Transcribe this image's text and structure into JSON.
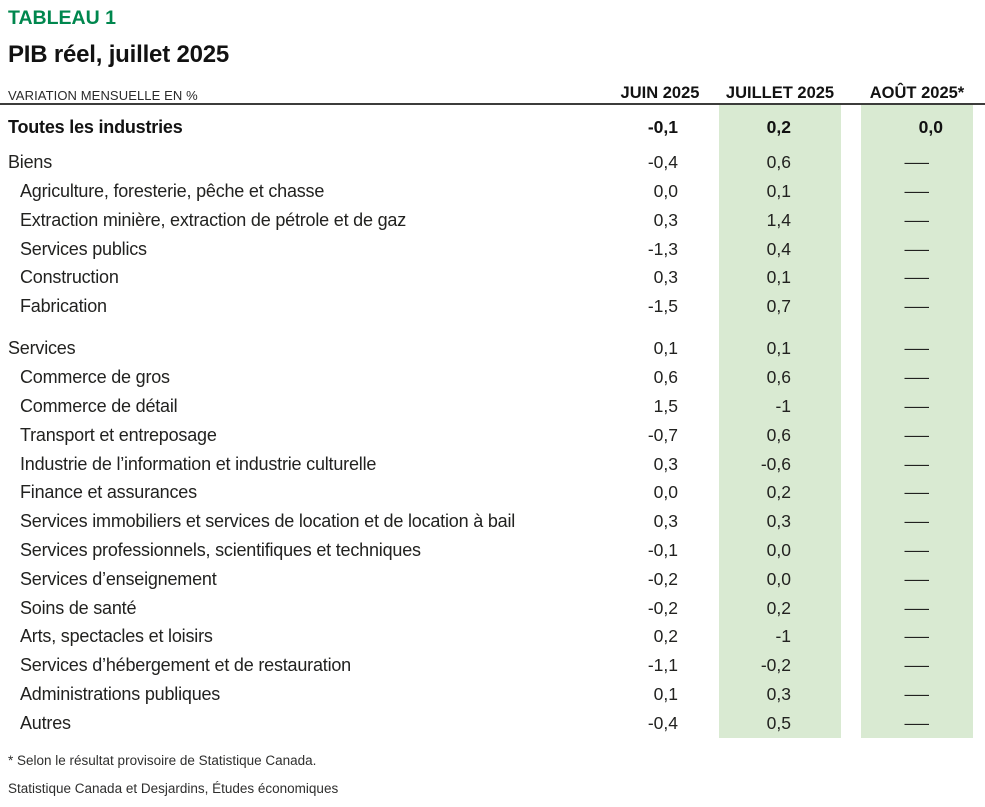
{
  "header": {
    "kicker": "TABLEAU 1",
    "title": "PIB réel, juillet 2025",
    "measure_label": "VARIATION MENSUELLE EN %"
  },
  "chart_data": {
    "type": "table",
    "title": "PIB réel, juillet 2025",
    "unit": "variation mensuelle en %",
    "columns": [
      "JUIN 2025",
      "JUILLET 2025",
      "AOÛT 2025*"
    ],
    "highlighted_columns": [
      "JUILLET 2025",
      "AOÛT 2025*"
    ],
    "no_data_symbol": "—",
    "rows": [
      {
        "label": "Toutes les industries",
        "level": 0,
        "bold": true,
        "gap_before": "none",
        "values": [
          "-0,1",
          "0,2",
          "0,0"
        ]
      },
      {
        "label": "Biens",
        "level": 0,
        "bold": false,
        "gap_before": "small",
        "values": [
          "-0,4",
          "0,6",
          "—"
        ]
      },
      {
        "label": "Agriculture, foresterie, pêche et chasse",
        "level": 1,
        "bold": false,
        "gap_before": "none",
        "values": [
          "0,0",
          "0,1",
          "—"
        ]
      },
      {
        "label": "Extraction minière, extraction de pétrole et de gaz",
        "level": 1,
        "bold": false,
        "gap_before": "none",
        "values": [
          "0,3",
          "1,4",
          "—"
        ]
      },
      {
        "label": "Services publics",
        "level": 1,
        "bold": false,
        "gap_before": "none",
        "values": [
          "-1,3",
          "0,4",
          "—"
        ]
      },
      {
        "label": "Construction",
        "level": 1,
        "bold": false,
        "gap_before": "none",
        "values": [
          "0,3",
          "0,1",
          "—"
        ]
      },
      {
        "label": "Fabrication",
        "level": 1,
        "bold": false,
        "gap_before": "none",
        "values": [
          "-1,5",
          "0,7",
          "—"
        ]
      },
      {
        "label": "Services",
        "level": 0,
        "bold": false,
        "gap_before": "large",
        "values": [
          "0,1",
          "0,1",
          "—"
        ]
      },
      {
        "label": "Commerce de gros",
        "level": 1,
        "bold": false,
        "gap_before": "none",
        "values": [
          "0,6",
          "0,6",
          "—"
        ]
      },
      {
        "label": "Commerce de détail",
        "level": 1,
        "bold": false,
        "gap_before": "none",
        "values": [
          "1,5",
          "-1",
          "—"
        ]
      },
      {
        "label": "Transport et entreposage",
        "level": 1,
        "bold": false,
        "gap_before": "none",
        "values": [
          "-0,7",
          "0,6",
          "—"
        ]
      },
      {
        "label": "Industrie de l’information et industrie culturelle",
        "level": 1,
        "bold": false,
        "gap_before": "none",
        "values": [
          "0,3",
          "-0,6",
          "—"
        ]
      },
      {
        "label": "Finance et assurances",
        "level": 1,
        "bold": false,
        "gap_before": "none",
        "values": [
          "0,0",
          "0,2",
          "—"
        ]
      },
      {
        "label": "Services immobiliers et services de location et de location à bail",
        "level": 1,
        "bold": false,
        "gap_before": "none",
        "values": [
          "0,3",
          "0,3",
          "—"
        ]
      },
      {
        "label": "Services professionnels, scientifiques et techniques",
        "level": 1,
        "bold": false,
        "gap_before": "none",
        "values": [
          "-0,1",
          "0,0",
          "—"
        ]
      },
      {
        "label": "Services d’enseignement",
        "level": 1,
        "bold": false,
        "gap_before": "none",
        "values": [
          "-0,2",
          "0,0",
          "—"
        ]
      },
      {
        "label": "Soins de santé",
        "level": 1,
        "bold": false,
        "gap_before": "none",
        "values": [
          "-0,2",
          "0,2",
          "—"
        ]
      },
      {
        "label": "Arts, spectacles et loisirs",
        "level": 1,
        "bold": false,
        "gap_before": "none",
        "values": [
          "0,2",
          "-1",
          "—"
        ]
      },
      {
        "label": "Services d’hébergement et de restauration",
        "level": 1,
        "bold": false,
        "gap_before": "none",
        "values": [
          "-1,1",
          "-0,2",
          "—"
        ]
      },
      {
        "label": "Administrations publiques",
        "level": 1,
        "bold": false,
        "gap_before": "none",
        "values": [
          "0,1",
          "0,3",
          "—"
        ]
      },
      {
        "label": "Autres",
        "level": 1,
        "bold": false,
        "gap_before": "none",
        "values": [
          "-0,4",
          "0,5",
          "—"
        ]
      }
    ]
  },
  "footnotes": [
    "* Selon le résultat provisoire de Statistique Canada.",
    "Statistique Canada et Desjardins, Études économiques"
  ],
  "colors": {
    "accent_green": "#00874E",
    "highlight_green": "#D9EAD2",
    "rule_dark": "#3C3C3B"
  }
}
